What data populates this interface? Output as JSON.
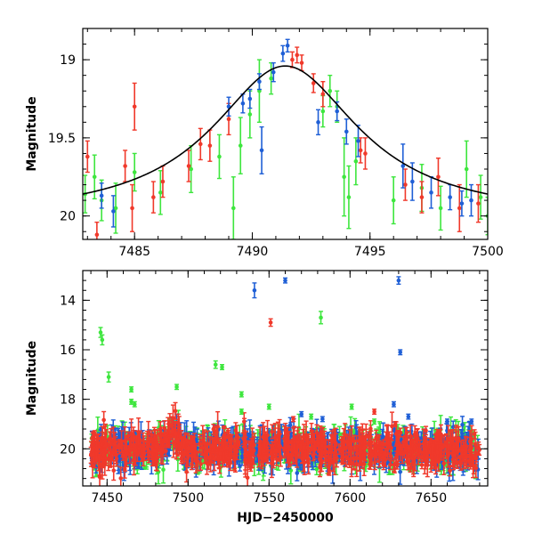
{
  "colors": {
    "green": "#3ee63e",
    "red": "#f0392b",
    "blue": "#1f5fd6",
    "model": "#000000",
    "axis": "#000000"
  },
  "chart_data": [
    {
      "type": "scatter",
      "panel": "top",
      "title": "",
      "xlabel": "",
      "ylabel": "Magnitude",
      "xlim": [
        7482.8,
        7500.0
      ],
      "ylim": [
        20.15,
        18.8
      ],
      "y_inverted": true,
      "xticks": [
        7485,
        7490,
        7495,
        7500
      ],
      "xtick_labels": [
        "7485",
        "7490",
        "7495",
        "7500"
      ],
      "yticks": [
        19,
        19.5,
        20
      ],
      "ytick_labels": [
        "19",
        "19.5",
        "20"
      ],
      "model_curve": {
        "description": "single-lens microlensing fit",
        "peak_time": 7491.4,
        "peak_mag": 19.04,
        "baseline_mag": 20.02,
        "timescale": 3.8
      },
      "series": [
        {
          "name": "",
          "color": "green",
          "points": [
            [
              7482.9,
              19.86,
              0.12
            ],
            [
              7483.3,
              19.75,
              0.14
            ],
            [
              7483.6,
              19.9,
              0.13
            ],
            [
              7484.2,
              19.95,
              0.16
            ],
            [
              7485.0,
              19.72,
              0.12
            ],
            [
              7486.1,
              19.85,
              0.14
            ],
            [
              7487.4,
              19.7,
              0.15
            ],
            [
              7488.6,
              19.62,
              0.14
            ],
            [
              7489.2,
              19.95,
              0.2
            ],
            [
              7489.5,
              19.55,
              0.18
            ],
            [
              7489.9,
              19.35,
              0.15
            ],
            [
              7490.3,
              19.2,
              0.2
            ],
            [
              7490.8,
              19.12,
              0.1
            ],
            [
              7493.0,
              19.33,
              0.1
            ],
            [
              7493.3,
              19.2,
              0.1
            ],
            [
              7493.6,
              19.3,
              0.1
            ],
            [
              7493.9,
              19.75,
              0.25
            ],
            [
              7494.1,
              19.88,
              0.2
            ],
            [
              7494.4,
              19.65,
              0.15
            ],
            [
              7496.0,
              19.9,
              0.15
            ],
            [
              7497.2,
              19.82,
              0.15
            ],
            [
              7498.0,
              19.95,
              0.14
            ],
            [
              7499.1,
              19.7,
              0.18
            ],
            [
              7499.7,
              19.88,
              0.14
            ],
            [
              7500.0,
              20.0,
              0.12
            ]
          ]
        },
        {
          "name": "",
          "color": "red",
          "points": [
            [
              7483.0,
              19.62,
              0.1
            ],
            [
              7483.4,
              20.12,
              0.08
            ],
            [
              7484.6,
              19.68,
              0.1
            ],
            [
              7484.9,
              19.95,
              0.15
            ],
            [
              7485.0,
              19.3,
              0.15
            ],
            [
              7485.8,
              19.88,
              0.1
            ],
            [
              7486.2,
              19.78,
              0.1
            ],
            [
              7487.3,
              19.68,
              0.1
            ],
            [
              7487.8,
              19.54,
              0.1
            ],
            [
              7488.2,
              19.55,
              0.1
            ],
            [
              7489.0,
              19.38,
              0.1
            ],
            [
              7491.7,
              19.0,
              0.05
            ],
            [
              7491.9,
              18.97,
              0.05
            ],
            [
              7492.1,
              19.02,
              0.05
            ],
            [
              7492.6,
              19.15,
              0.06
            ],
            [
              7493.0,
              19.22,
              0.08
            ],
            [
              7494.6,
              19.58,
              0.08
            ],
            [
              7494.8,
              19.6,
              0.1
            ],
            [
              7496.5,
              19.8,
              0.1
            ],
            [
              7497.2,
              19.88,
              0.1
            ],
            [
              7497.9,
              19.75,
              0.12
            ],
            [
              7498.8,
              19.95,
              0.15
            ],
            [
              7499.6,
              19.92,
              0.12
            ]
          ]
        },
        {
          "name": "",
          "color": "blue",
          "points": [
            [
              7483.6,
              19.87,
              0.08
            ],
            [
              7484.1,
              19.97,
              0.1
            ],
            [
              7489.0,
              19.3,
              0.06
            ],
            [
              7489.6,
              19.28,
              0.06
            ],
            [
              7489.9,
              19.25,
              0.06
            ],
            [
              7490.3,
              19.14,
              0.05
            ],
            [
              7490.9,
              19.08,
              0.06
            ],
            [
              7491.3,
              18.96,
              0.05
            ],
            [
              7491.5,
              18.91,
              0.04
            ],
            [
              7490.4,
              19.58,
              0.15
            ],
            [
              7492.8,
              19.4,
              0.08
            ],
            [
              7493.6,
              19.33,
              0.06
            ],
            [
              7494.0,
              19.46,
              0.08
            ],
            [
              7494.5,
              19.52,
              0.1
            ],
            [
              7496.4,
              19.68,
              0.14
            ],
            [
              7496.8,
              19.78,
              0.12
            ],
            [
              7497.6,
              19.85,
              0.1
            ],
            [
              7498.4,
              19.88,
              0.08
            ],
            [
              7498.9,
              19.92,
              0.08
            ],
            [
              7499.3,
              19.9,
              0.1
            ]
          ]
        }
      ]
    },
    {
      "type": "scatter",
      "panel": "bottom",
      "title": "",
      "xlabel": "HJD−2450000",
      "ylabel": "Magnitude",
      "xlim": [
        7435,
        7685
      ],
      "ylim": [
        21.5,
        12.8
      ],
      "y_inverted": true,
      "xticks": [
        7450,
        7500,
        7550,
        7600,
        7650
      ],
      "xtick_labels": [
        "7450",
        "7500",
        "7550",
        "7600",
        "7650"
      ],
      "yticks": [
        14,
        16,
        18,
        20
      ],
      "ytick_labels": [
        "14",
        "16",
        "18",
        "20"
      ],
      "baseline_mag": 20.0,
      "baseline_x_range": [
        7440,
        7680
      ],
      "series": [
        {
          "name": "",
          "color": "green",
          "outliers": [
            [
              7446,
              15.3,
              0.2
            ],
            [
              7447,
              15.6,
              0.2
            ],
            [
              7451,
              17.1,
              0.2
            ],
            [
              7465,
              17.6,
              0.1
            ],
            [
              7465,
              18.1,
              0.1
            ],
            [
              7467,
              18.2,
              0.1
            ],
            [
              7493,
              17.5,
              0.1
            ],
            [
              7517,
              16.6,
              0.15
            ],
            [
              7521,
              16.7,
              0.1
            ],
            [
              7533,
              17.8,
              0.1
            ],
            [
              7582,
              14.7,
              0.25
            ],
            [
              7533,
              18.5,
              0.1
            ],
            [
              7550,
              18.3,
              0.1
            ],
            [
              7576,
              18.7,
              0.1
            ],
            [
              7601,
              18.3,
              0.1
            ],
            [
              7615,
              18.9,
              0.1
            ]
          ]
        },
        {
          "name": "",
          "color": "red",
          "outliers": [
            [
              7551,
              14.9,
              0.15
            ],
            [
              7615,
              18.5,
              0.1
            ],
            [
              7628,
              19.0,
              0.1
            ],
            [
              7565,
              18.8,
              0.1
            ]
          ]
        },
        {
          "name": "",
          "color": "blue",
          "outliers": [
            [
              7541,
              13.6,
              0.3
            ],
            [
              7560,
              13.2,
              0.1
            ],
            [
              7630,
              13.2,
              0.15
            ],
            [
              7631,
              16.1,
              0.1
            ],
            [
              7627,
              18.2,
              0.1
            ],
            [
              7570,
              18.6,
              0.1
            ],
            [
              7583,
              18.8,
              0.1
            ],
            [
              7636,
              18.7,
              0.1
            ],
            [
              7660,
              18.9,
              0.1
            ],
            [
              7675,
              18.9,
              0.1
            ]
          ]
        }
      ]
    }
  ]
}
